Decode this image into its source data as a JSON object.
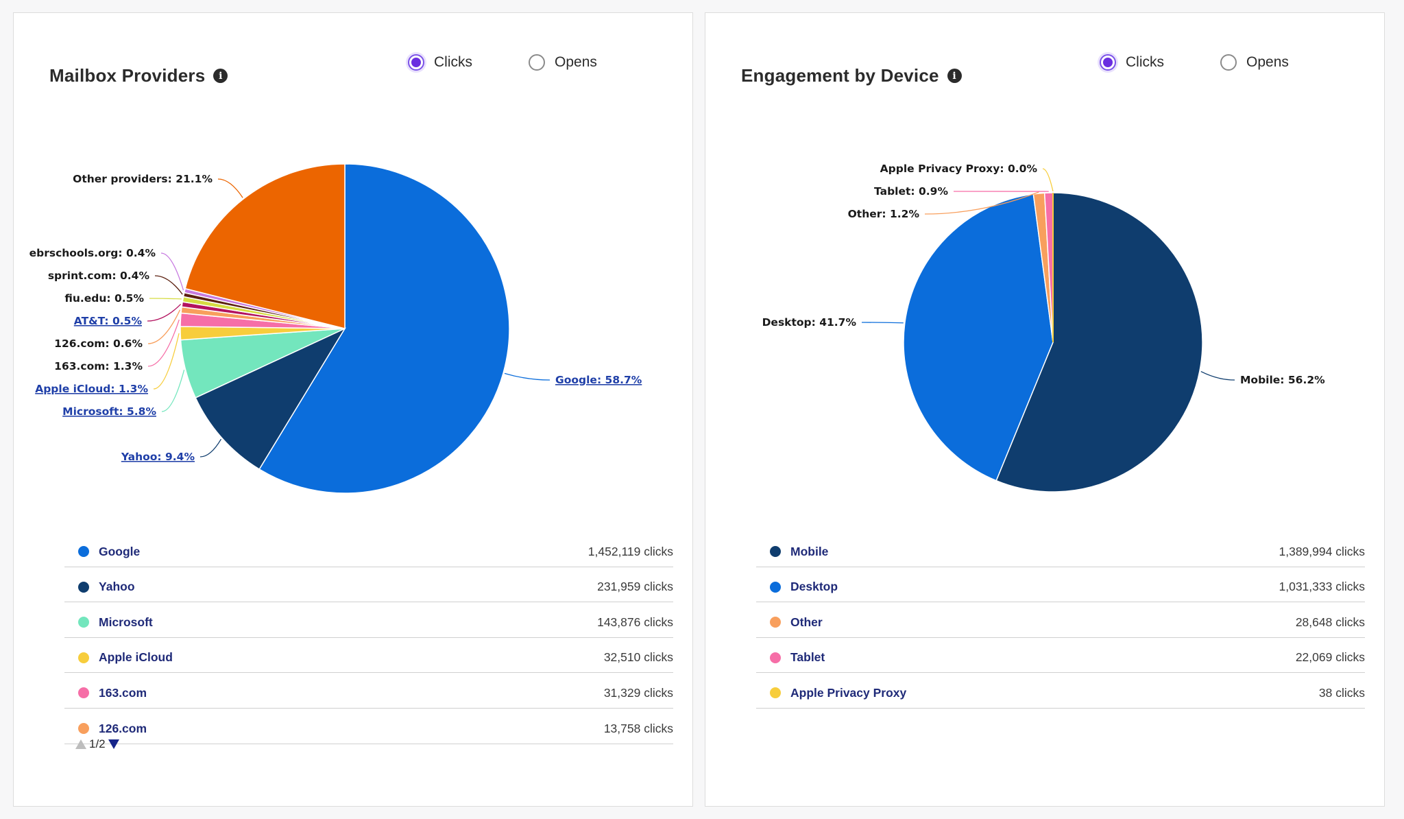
{
  "chart_data": [
    {
      "type": "pie",
      "title": "Mailbox Providers",
      "metric_options": [
        "Clicks",
        "Opens"
      ],
      "selected_metric": "Clicks",
      "slices": [
        {
          "name": "Google",
          "label": "Google: 58.7%",
          "percent": 58.7,
          "color": "#0b6ddb",
          "link": true
        },
        {
          "name": "Yahoo",
          "label": "Yahoo: 9.4%",
          "percent": 9.4,
          "color": "#0f3d6e",
          "link": true
        },
        {
          "name": "Microsoft",
          "label": "Microsoft: 5.8%",
          "percent": 5.8,
          "color": "#73e6bd",
          "link": true
        },
        {
          "name": "Apple iCloud",
          "label": "Apple iCloud: 1.3%",
          "percent": 1.3,
          "color": "#f7cd3c",
          "link": true
        },
        {
          "name": "163.com",
          "label": "163.com: 1.3%",
          "percent": 1.3,
          "color": "#f66ea7",
          "link": false
        },
        {
          "name": "126.com",
          "label": "126.com: 0.6%",
          "percent": 0.6,
          "color": "#f89f5d",
          "link": false
        },
        {
          "name": "AT&T",
          "label": "AT&T: 0.5%",
          "percent": 0.5,
          "color": "#b3125f",
          "link": true
        },
        {
          "name": "fiu.edu",
          "label": "fiu.edu: 0.5%",
          "percent": 0.5,
          "color": "#d6dc43",
          "link": false
        },
        {
          "name": "sprint.com",
          "label": "sprint.com: 0.4%",
          "percent": 0.4,
          "color": "#5b1f0f",
          "link": false
        },
        {
          "name": "ebrschools.org",
          "label": "ebrschools.org: 0.4%",
          "percent": 0.4,
          "color": "#c77ae0",
          "link": false
        },
        {
          "name": "Other providers",
          "label": "Other providers: 21.1%",
          "percent": 21.1,
          "color": "#ec6500",
          "link": false
        }
      ],
      "legend": [
        {
          "name": "Google",
          "value": "1,452,119 clicks",
          "color": "#0b6ddb"
        },
        {
          "name": "Yahoo",
          "value": "231,959 clicks",
          "color": "#0f3d6e"
        },
        {
          "name": "Microsoft",
          "value": "143,876 clicks",
          "color": "#73e6bd"
        },
        {
          "name": "Apple iCloud",
          "value": "32,510 clicks",
          "color": "#f7cd3c"
        },
        {
          "name": "163.com",
          "value": "31,329 clicks",
          "color": "#f66ea7"
        },
        {
          "name": "126.com",
          "value": "13,758 clicks",
          "color": "#f89f5d"
        }
      ],
      "pager": "1/2"
    },
    {
      "type": "pie",
      "title": "Engagement by Device",
      "metric_options": [
        "Clicks",
        "Opens"
      ],
      "selected_metric": "Clicks",
      "slices": [
        {
          "name": "Mobile",
          "label": "Mobile: 56.2%",
          "percent": 56.2,
          "color": "#0f3d6e",
          "link": false
        },
        {
          "name": "Desktop",
          "label": "Desktop: 41.7%",
          "percent": 41.7,
          "color": "#0b6ddb",
          "link": false
        },
        {
          "name": "Other",
          "label": "Other: 1.2%",
          "percent": 1.2,
          "color": "#f89f5d",
          "link": false
        },
        {
          "name": "Tablet",
          "label": "Tablet: 0.9%",
          "percent": 0.9,
          "color": "#f66ea7",
          "link": false
        },
        {
          "name": "Apple Privacy Proxy",
          "label": "Apple Privacy Proxy: 0.0%",
          "percent": 0.0,
          "color": "#f7cd3c",
          "link": false
        }
      ],
      "legend": [
        {
          "name": "Mobile",
          "value": "1,389,994 clicks",
          "color": "#0f3d6e"
        },
        {
          "name": "Desktop",
          "value": "1,031,333 clicks",
          "color": "#0b6ddb"
        },
        {
          "name": "Other",
          "value": "28,648 clicks",
          "color": "#f89f5d"
        },
        {
          "name": "Tablet",
          "value": "22,069 clicks",
          "color": "#f66ea7"
        },
        {
          "name": "Apple Privacy Proxy",
          "value": "38 clicks",
          "color": "#f7cd3c"
        }
      ]
    }
  ]
}
